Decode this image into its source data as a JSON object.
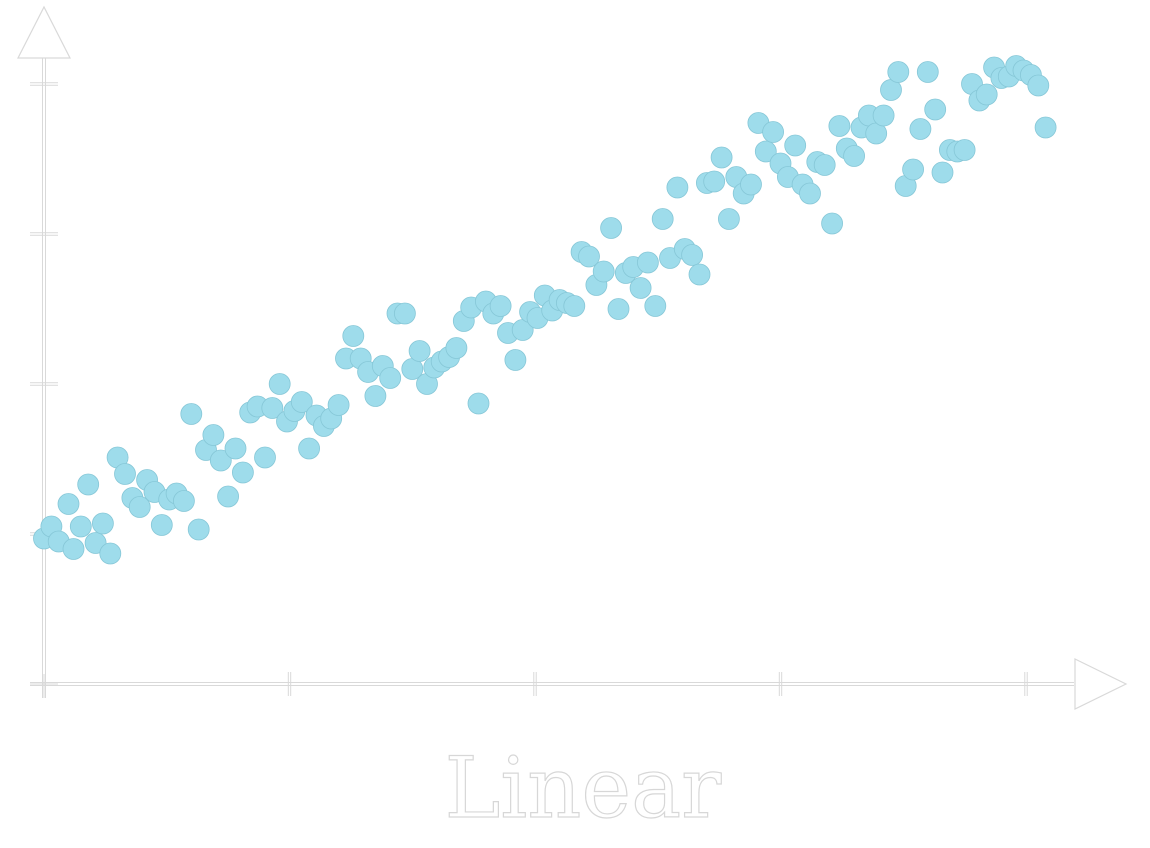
{
  "chart_data": {
    "type": "scatter",
    "title": "Linear",
    "xlabel": "",
    "ylabel": "",
    "xlim": [
      0,
      4.3
    ],
    "ylim": [
      0,
      4.4
    ],
    "x_ticks": [
      0,
      1,
      2,
      3,
      4
    ],
    "y_ticks": [
      0,
      1,
      2,
      3,
      4
    ],
    "tick_labels_shown": false,
    "grid": false,
    "legend": "none",
    "axis_color": "#d9d9d9",
    "point_color": "#9edceb",
    "point_edge_color": "#86c7d7",
    "series": [
      {
        "points": [
          [
            0.0,
            0.97
          ],
          [
            0.03,
            1.05
          ],
          [
            0.06,
            0.95
          ],
          [
            0.1,
            1.2
          ],
          [
            0.12,
            0.9
          ],
          [
            0.15,
            1.05
          ],
          [
            0.18,
            1.33
          ],
          [
            0.21,
            0.94
          ],
          [
            0.24,
            1.07
          ],
          [
            0.27,
            0.87
          ],
          [
            0.3,
            1.51
          ],
          [
            0.33,
            1.4
          ],
          [
            0.36,
            1.24
          ],
          [
            0.39,
            1.18
          ],
          [
            0.42,
            1.36
          ],
          [
            0.45,
            1.28
          ],
          [
            0.48,
            1.06
          ],
          [
            0.51,
            1.23
          ],
          [
            0.54,
            1.27
          ],
          [
            0.57,
            1.22
          ],
          [
            0.6,
            1.8
          ],
          [
            0.63,
            1.03
          ],
          [
            0.66,
            1.56
          ],
          [
            0.69,
            1.66
          ],
          [
            0.72,
            1.49
          ],
          [
            0.75,
            1.25
          ],
          [
            0.78,
            1.57
          ],
          [
            0.81,
            1.41
          ],
          [
            0.84,
            1.81
          ],
          [
            0.87,
            1.85
          ],
          [
            0.9,
            1.51
          ],
          [
            0.93,
            1.84
          ],
          [
            0.96,
            2.0
          ],
          [
            0.99,
            1.75
          ],
          [
            1.02,
            1.82
          ],
          [
            1.05,
            1.88
          ],
          [
            1.08,
            1.57
          ],
          [
            1.11,
            1.79
          ],
          [
            1.14,
            1.72
          ],
          [
            1.17,
            1.77
          ],
          [
            1.2,
            1.86
          ],
          [
            1.23,
            2.17
          ],
          [
            1.26,
            2.32
          ],
          [
            1.29,
            2.17
          ],
          [
            1.32,
            2.08
          ],
          [
            1.35,
            1.92
          ],
          [
            1.38,
            2.12
          ],
          [
            1.41,
            2.04
          ],
          [
            1.44,
            2.47
          ],
          [
            1.47,
            2.47
          ],
          [
            1.5,
            2.1
          ],
          [
            1.53,
            2.22
          ],
          [
            1.56,
            2.0
          ],
          [
            1.59,
            2.11
          ],
          [
            1.62,
            2.15
          ],
          [
            1.65,
            2.18
          ],
          [
            1.68,
            2.24
          ],
          [
            1.71,
            2.42
          ],
          [
            1.74,
            2.51
          ],
          [
            1.77,
            1.87
          ],
          [
            1.8,
            2.55
          ],
          [
            1.83,
            2.47
          ],
          [
            1.86,
            2.52
          ],
          [
            1.89,
            2.34
          ],
          [
            1.92,
            2.16
          ],
          [
            1.95,
            2.36
          ],
          [
            1.98,
            2.48
          ],
          [
            2.01,
            2.44
          ],
          [
            2.04,
            2.59
          ],
          [
            2.07,
            2.49
          ],
          [
            2.1,
            2.56
          ],
          [
            2.13,
            2.54
          ],
          [
            2.16,
            2.52
          ],
          [
            2.19,
            2.88
          ],
          [
            2.22,
            2.85
          ],
          [
            2.25,
            2.66
          ],
          [
            2.28,
            2.75
          ],
          [
            2.31,
            3.04
          ],
          [
            2.34,
            2.5
          ],
          [
            2.37,
            2.74
          ],
          [
            2.4,
            2.78
          ],
          [
            2.43,
            2.64
          ],
          [
            2.46,
            2.81
          ],
          [
            2.49,
            2.52
          ],
          [
            2.52,
            3.1
          ],
          [
            2.55,
            2.84
          ],
          [
            2.58,
            3.31
          ],
          [
            2.61,
            2.9
          ],
          [
            2.64,
            2.86
          ],
          [
            2.67,
            2.73
          ],
          [
            2.7,
            3.34
          ],
          [
            2.73,
            3.35
          ],
          [
            2.76,
            3.51
          ],
          [
            2.79,
            3.1
          ],
          [
            2.82,
            3.38
          ],
          [
            2.85,
            3.27
          ],
          [
            2.88,
            3.33
          ],
          [
            2.91,
            3.74
          ],
          [
            2.94,
            3.55
          ],
          [
            2.97,
            3.68
          ],
          [
            3.0,
            3.47
          ],
          [
            3.03,
            3.38
          ],
          [
            3.06,
            3.59
          ],
          [
            3.09,
            3.33
          ],
          [
            3.12,
            3.27
          ],
          [
            3.15,
            3.48
          ],
          [
            3.18,
            3.46
          ],
          [
            3.21,
            3.07
          ],
          [
            3.24,
            3.72
          ],
          [
            3.27,
            3.57
          ],
          [
            3.3,
            3.52
          ],
          [
            3.33,
            3.71
          ],
          [
            3.36,
            3.79
          ],
          [
            3.39,
            3.67
          ],
          [
            3.42,
            3.79
          ],
          [
            3.45,
            3.96
          ],
          [
            3.48,
            4.08
          ],
          [
            3.51,
            3.32
          ],
          [
            3.54,
            3.43
          ],
          [
            3.57,
            3.7
          ],
          [
            3.6,
            4.08
          ],
          [
            3.63,
            3.83
          ],
          [
            3.66,
            3.41
          ],
          [
            3.69,
            3.56
          ],
          [
            3.72,
            3.55
          ],
          [
            3.75,
            3.56
          ],
          [
            3.78,
            4.0
          ],
          [
            3.81,
            3.89
          ],
          [
            3.84,
            3.93
          ],
          [
            3.87,
            4.11
          ],
          [
            3.9,
            4.04
          ],
          [
            3.93,
            4.05
          ],
          [
            3.96,
            4.12
          ],
          [
            3.99,
            4.09
          ],
          [
            4.02,
            4.06
          ],
          [
            4.05,
            3.99
          ],
          [
            4.08,
            3.71
          ]
        ]
      }
    ]
  }
}
